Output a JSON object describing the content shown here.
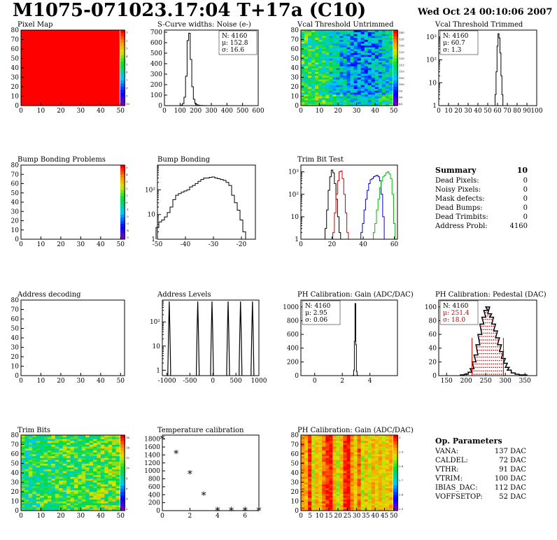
{
  "header": {
    "title": "M1075-071023.17:04 T+17a (C10)",
    "date": "Wed Oct 24 00:10:06 2007"
  },
  "colors": {
    "hist_black": "#000000",
    "hist_red": "#cc0000",
    "hist_blue": "#0000cc",
    "hist_green": "#00bb00",
    "map_red": "#ff0000"
  },
  "panels": {
    "pixel_map": {
      "title": "Pixel Map"
    },
    "scurve": {
      "title": "S-Curve widths: Noise (e-)"
    },
    "vcal_untrimmed": {
      "title": "Vcal Threshold Untrimmed"
    },
    "vcal_trimmed": {
      "title": "Vcal Threshold Trimmed"
    },
    "bump_problems": {
      "title": "Bump Bonding Problems"
    },
    "bump_bonding": {
      "title": "Bump Bonding"
    },
    "trim_bit_test": {
      "title": "Trim Bit Test"
    },
    "address_decoding": {
      "title": "Address decoding"
    },
    "address_levels": {
      "title": "Address Levels"
    },
    "ph_gain": {
      "title": "PH Calibration: Gain (ADC/DAC)"
    },
    "ph_pedestal": {
      "title": "PH Calibration: Pedestal (DAC)"
    },
    "trim_bits": {
      "title": "Trim Bits"
    },
    "temperature": {
      "title": "Temperature calibration"
    },
    "ph_gain_map": {
      "title": "PH Calibration: Gain (ADC/DAC)"
    }
  },
  "summary": {
    "title": "Summary",
    "value": "10",
    "rows": [
      {
        "label": "Dead Pixels:",
        "value": "0"
      },
      {
        "label": "Noisy Pixels:",
        "value": "0"
      },
      {
        "label": "Mask defects:",
        "value": "0"
      },
      {
        "label": "Dead Bumps:",
        "value": "0"
      },
      {
        "label": "Dead Trimbits:",
        "value": "0"
      },
      {
        "label": "Address Probl:",
        "value": "4160"
      }
    ]
  },
  "op_params": {
    "title": "Op. Parameters",
    "rows": [
      {
        "label": "VANA:",
        "value": "137 DAC"
      },
      {
        "label": "CALDEL:",
        "value": "72 DAC"
      },
      {
        "label": "VTHR:",
        "value": "91 DAC"
      },
      {
        "label": "VTRIM:",
        "value": "100 DAC"
      },
      {
        "label": "IBIAS_DAC:",
        "value": "112 DAC"
      },
      {
        "label": "VOFFSETOP:",
        "value": "52 DAC"
      }
    ]
  },
  "chart_data": [
    {
      "id": "pixel_map",
      "type": "heatmap",
      "title": "Pixel Map",
      "xlim": [
        0,
        52
      ],
      "ylim": [
        0,
        80
      ],
      "xticks": [
        0,
        10,
        20,
        30,
        40,
        50
      ],
      "yticks": [
        0,
        10,
        20,
        30,
        40,
        50,
        60,
        70,
        80
      ],
      "fill": "uniform red",
      "zticks": [
        "1",
        "2",
        "3",
        "4",
        "5",
        "6",
        "7",
        "8",
        "9",
        "10"
      ]
    },
    {
      "id": "scurve",
      "type": "bar",
      "title": "S-Curve widths: Noise (e-)",
      "xlim": [
        0,
        600
      ],
      "ylim": [
        0,
        720
      ],
      "xticks": [
        0,
        100,
        200,
        300,
        400,
        500,
        600
      ],
      "yticks": [
        0,
        100,
        200,
        300,
        400,
        500,
        600,
        700
      ],
      "stats": [
        "N: 4160",
        "μ: 152.8",
        "σ: 16.6"
      ],
      "x": [
        110,
        120,
        130,
        140,
        150,
        160,
        170,
        180,
        190,
        200,
        210,
        220,
        230,
        240,
        250,
        260
      ],
      "values": [
        5,
        20,
        80,
        280,
        620,
        690,
        440,
        180,
        60,
        20,
        8,
        4,
        2,
        2,
        1,
        1
      ]
    },
    {
      "id": "vcal_untrimmed",
      "type": "heatmap",
      "title": "Vcal Threshold Untrimmed",
      "xlim": [
        0,
        52
      ],
      "ylim": [
        0,
        80
      ],
      "xticks": [
        0,
        10,
        20,
        30,
        40,
        50
      ],
      "yticks": [
        0,
        10,
        20,
        30,
        40,
        50,
        60,
        70,
        80
      ],
      "zticks": [
        "140",
        "135",
        "130",
        "125",
        "120",
        "115",
        "110",
        "105",
        "100",
        "95",
        "90",
        "85"
      ]
    },
    {
      "id": "vcal_trimmed",
      "type": "bar",
      "title": "Vcal Threshold Trimmed",
      "log_y": true,
      "xlim": [
        0,
        100
      ],
      "ylim": [
        1,
        2000
      ],
      "xticks": [
        0,
        10,
        20,
        30,
        40,
        50,
        60,
        70,
        80,
        90,
        100
      ],
      "yticks": [
        "1",
        "10",
        "10²",
        "10³"
      ],
      "stats": [
        "N: 4160",
        "μ: 60.7",
        "σ: 1.3"
      ],
      "x": [
        57,
        58,
        59,
        60,
        61,
        62,
        63,
        64,
        65,
        66,
        67
      ],
      "values": [
        1,
        3,
        30,
        400,
        1400,
        900,
        200,
        20,
        3,
        1,
        1
      ]
    },
    {
      "id": "bump_problems",
      "type": "heatmap",
      "title": "Bump Bonding Problems",
      "xlim": [
        0,
        52
      ],
      "ylim": [
        0,
        80
      ],
      "xticks": [
        0,
        10,
        20,
        30,
        40,
        50
      ],
      "yticks": [
        0,
        10,
        20,
        30,
        40,
        50,
        60,
        70,
        80
      ],
      "fill": "empty",
      "zticks": [
        "5",
        "4",
        "3",
        "2",
        "1",
        "0",
        "-1",
        "-2",
        "-3",
        "-4",
        "-5"
      ]
    },
    {
      "id": "bump_bonding",
      "type": "bar",
      "title": "Bump Bonding",
      "log_y": true,
      "xlim": [
        -50,
        -15
      ],
      "ylim": [
        1,
        1000
      ],
      "xticks": [
        -50,
        -40,
        -30,
        -20
      ],
      "yticks": [
        "1",
        "10",
        "10²"
      ],
      "x": [
        -50,
        -49,
        -48,
        -47,
        -46,
        -45,
        -44,
        -43,
        -42,
        -41,
        -40,
        -39,
        -38,
        -37,
        -36,
        -35,
        -34,
        -33,
        -32,
        -31,
        -30,
        -29,
        -28,
        -27,
        -26,
        -25,
        -24,
        -23,
        -22,
        -21,
        -20,
        -19,
        -18
      ],
      "values": [
        3,
        5,
        6,
        8,
        12,
        20,
        40,
        60,
        70,
        80,
        90,
        100,
        130,
        150,
        180,
        220,
        260,
        300,
        300,
        320,
        330,
        300,
        280,
        260,
        240,
        200,
        150,
        60,
        30,
        15,
        6,
        2,
        1
      ]
    },
    {
      "id": "trim_bit_test",
      "type": "line",
      "title": "Trim Bit Test",
      "log_y": true,
      "xlim": [
        0,
        62
      ],
      "ylim": [
        1,
        2000
      ],
      "xticks": [
        0,
        20,
        40,
        60
      ],
      "yticks": [
        "1",
        "10",
        "10²",
        "10³"
      ],
      "series": [
        {
          "color": "#000000",
          "x": [
            15,
            16,
            17,
            18,
            19,
            20,
            21,
            22,
            23,
            24,
            25,
            26,
            27
          ],
          "values": [
            1,
            3,
            20,
            150,
            600,
            1200,
            900,
            300,
            60,
            10,
            2,
            1,
            1
          ]
        },
        {
          "color": "#cc0000",
          "x": [
            20,
            21,
            22,
            23,
            24,
            25,
            26,
            27,
            28,
            29,
            30,
            31,
            32
          ],
          "values": [
            1,
            2,
            15,
            100,
            400,
            1000,
            1100,
            500,
            100,
            15,
            2,
            1,
            1
          ]
        },
        {
          "color": "#0000cc",
          "x": [
            38,
            39,
            40,
            41,
            42,
            43,
            44,
            45,
            46,
            47,
            48,
            49,
            50,
            51,
            52,
            53,
            54
          ],
          "values": [
            1,
            2,
            5,
            20,
            60,
            150,
            300,
            450,
            500,
            600,
            650,
            700,
            600,
            400,
            100,
            10,
            1
          ]
        },
        {
          "color": "#00bb00",
          "x": [
            46,
            47,
            48,
            49,
            50,
            51,
            52,
            53,
            54,
            55,
            56,
            57,
            58,
            59,
            60
          ],
          "values": [
            1,
            2,
            5,
            20,
            60,
            200,
            400,
            600,
            700,
            900,
            1000,
            800,
            500,
            100,
            5
          ]
        }
      ]
    },
    {
      "id": "address_decoding",
      "type": "heatmap",
      "title": "Address decoding",
      "xlim": [
        0,
        52
      ],
      "ylim": [
        0,
        80
      ],
      "xticks": [
        0,
        10,
        20,
        30,
        40,
        50
      ],
      "yticks": [
        0,
        10,
        20,
        30,
        40,
        50,
        60,
        70,
        80
      ],
      "fill": "empty"
    },
    {
      "id": "address_levels",
      "type": "bar",
      "title": "Address Levels",
      "log_y": true,
      "xlim": [
        -1100,
        1000
      ],
      "ylim": [
        0.6,
        800
      ],
      "xticks": [
        -1000,
        -500,
        0,
        500,
        1000
      ],
      "yticks": [
        "1",
        "10",
        "10²"
      ],
      "peaks": [
        -950,
        -330,
        -20,
        330,
        600,
        860
      ],
      "values": [
        700,
        700,
        700,
        700,
        700,
        700
      ]
    },
    {
      "id": "ph_gain",
      "type": "bar",
      "title": "PH Calibration: Gain (ADC/DAC)",
      "xlim": [
        -1,
        6
      ],
      "ylim": [
        0,
        1100
      ],
      "xticks": [
        0,
        2,
        4
      ],
      "yticks": [
        0,
        200,
        400,
        600,
        800,
        1000
      ],
      "stats": [
        "N: 4160",
        "μ: 2.95",
        "σ: 0.06"
      ],
      "x": [
        2.8,
        2.85,
        2.9,
        2.95,
        3.0,
        3.05,
        3.1
      ],
      "values": [
        5,
        80,
        500,
        1050,
        450,
        60,
        5
      ]
    },
    {
      "id": "ph_pedestal",
      "type": "bar",
      "title": "PH Calibration: Pedestal (DAC)",
      "xlim": [
        130,
        380
      ],
      "ylim": [
        0,
        110
      ],
      "xticks": [
        150,
        200,
        250,
        300,
        350
      ],
      "yticks": [
        0,
        20,
        40,
        60,
        80,
        100
      ],
      "stats": [
        "N: 4160",
        "μ: 251.4",
        "σ: 18.0"
      ],
      "x": [
        190,
        200,
        210,
        215,
        220,
        225,
        230,
        235,
        240,
        245,
        250,
        255,
        260,
        265,
        270,
        275,
        280,
        285,
        290,
        295,
        300,
        305,
        310,
        320,
        330,
        340,
        350
      ],
      "values": [
        1,
        2,
        5,
        10,
        20,
        30,
        45,
        60,
        75,
        85,
        95,
        100,
        90,
        85,
        75,
        65,
        55,
        45,
        35,
        25,
        18,
        12,
        8,
        4,
        2,
        1,
        1
      ],
      "fit_range": [
        215,
        295
      ]
    },
    {
      "id": "trim_bits",
      "type": "heatmap",
      "title": "Trim Bits",
      "xlim": [
        0,
        52
      ],
      "ylim": [
        0,
        80
      ],
      "xticks": [
        0,
        10,
        20,
        30,
        40,
        50
      ],
      "yticks": [
        0,
        10,
        20,
        30,
        40,
        50,
        60,
        70,
        80
      ],
      "zticks": [
        "16",
        "14",
        "12",
        "10",
        "8",
        "6",
        "4",
        "2"
      ]
    },
    {
      "id": "temperature",
      "type": "scatter",
      "title": "Temperature calibration",
      "xlim": [
        0,
        7
      ],
      "ylim": [
        0,
        1900
      ],
      "xticks": [
        0,
        2,
        4,
        6
      ],
      "yticks": [
        0,
        200,
        400,
        600,
        800,
        1000,
        1200,
        1400,
        1600,
        1800
      ],
      "x": [
        0,
        1,
        2,
        3,
        4,
        5,
        6,
        7
      ],
      "values": [
        1800,
        1430,
        920,
        390,
        0,
        0,
        0,
        0
      ]
    },
    {
      "id": "ph_gain_map",
      "type": "heatmap",
      "title": "PH Calibration: Gain (ADC/DAC)",
      "xlim": [
        0,
        52
      ],
      "ylim": [
        0,
        80
      ],
      "xticks": [
        0,
        5,
        10,
        15,
        20,
        25,
        30,
        35,
        40,
        45,
        50
      ],
      "yticks": [
        0,
        10,
        20,
        30,
        40,
        50,
        60,
        70,
        80
      ],
      "zticks": [
        "3",
        "2.9",
        "2.8",
        "2.7",
        "2.6",
        "2.5"
      ]
    }
  ]
}
